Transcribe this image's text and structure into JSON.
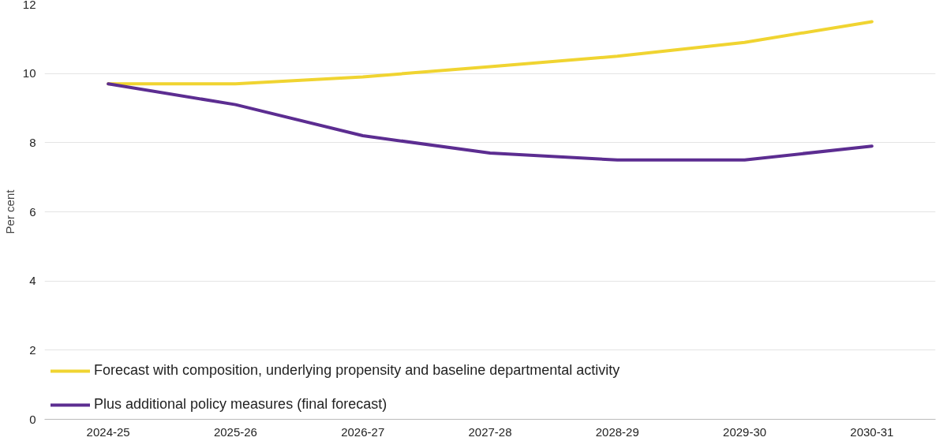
{
  "chart_data": {
    "type": "line",
    "ylabel": "Per cent",
    "categories": [
      "2024-25",
      "2025-26",
      "2026-27",
      "2027-28",
      "2028-29",
      "2029-30",
      "2030-31"
    ],
    "series": [
      {
        "name": "Forecast with composition, underlying propensity and baseline departmental activity",
        "color": "#f0d431",
        "values": [
          9.7,
          9.7,
          9.9,
          10.2,
          10.5,
          10.9,
          11.5
        ]
      },
      {
        "name": "Plus additional policy measures (final forecast)",
        "color": "#5c2d91",
        "values": [
          9.7,
          9.1,
          8.2,
          7.7,
          7.5,
          7.5,
          7.9
        ]
      }
    ],
    "ylim": [
      0,
      12
    ],
    "yticks": [
      0,
      2,
      4,
      6,
      8,
      10,
      12
    ],
    "grid": "y",
    "legend": "bottom left",
    "marker": "none",
    "line_style": "solid"
  }
}
